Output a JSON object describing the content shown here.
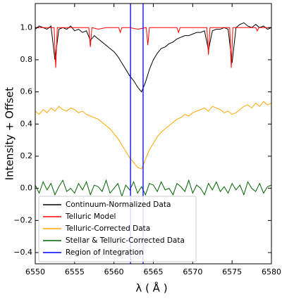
{
  "chart_data": {
    "type": "line",
    "xlabel": "λ ( Å )",
    "ylabel": "Intensity + Offset",
    "xlim": [
      6550,
      6580
    ],
    "ylim": [
      -0.47,
      1.15
    ],
    "xticks": [
      6550,
      6555,
      6560,
      6565,
      6570,
      6575,
      6580
    ],
    "yticks": [
      {
        "value": -0.4,
        "label": "−0.4"
      },
      {
        "value": -0.2,
        "label": "−0.2"
      },
      {
        "value": 0,
        "label": "0.0"
      },
      0.2,
      0.4,
      0.6,
      0.8,
      {
        "value": 1,
        "label": "1.0"
      }
    ],
    "legend": "lower left",
    "x": [
      6550,
      6550.5,
      6551,
      6551.5,
      6552,
      6552.5,
      6553,
      6553.5,
      6554,
      6554.5,
      6555,
      6555.5,
      6556,
      6556.5,
      6557,
      6557.5,
      6558,
      6558.5,
      6559,
      6559.5,
      6560,
      6560.5,
      6561,
      6561.5,
      6562,
      6562.5,
      6563,
      6563.5,
      6564,
      6564.5,
      6565,
      6565.5,
      6566,
      6566.5,
      6567,
      6567.5,
      6568,
      6568.5,
      6569,
      6569.5,
      6570,
      6570.5,
      6571,
      6571.5,
      6572,
      6572.5,
      6573,
      6573.5,
      6574,
      6574.5,
      6575,
      6575.5,
      6576,
      6576.5,
      6577,
      6577.5,
      6578,
      6578.5,
      6579,
      6579.5,
      6580
    ],
    "series": [
      {
        "name": "Continuum-Normalized Data",
        "color": "#000000",
        "values": [
          0.99,
          1.01,
          1.0,
          0.99,
          1.01,
          0.8,
          0.99,
          1.0,
          0.99,
          1.01,
          0.98,
          0.99,
          0.97,
          0.98,
          0.92,
          0.95,
          0.93,
          0.91,
          0.89,
          0.87,
          0.85,
          0.82,
          0.78,
          0.74,
          0.7,
          0.67,
          0.63,
          0.6,
          0.66,
          0.74,
          0.8,
          0.84,
          0.87,
          0.88,
          0.9,
          0.91,
          0.93,
          0.94,
          0.95,
          0.95,
          0.96,
          0.97,
          0.97,
          0.98,
          0.86,
          0.98,
          0.99,
          0.99,
          1.0,
          0.99,
          0.78,
          1.0,
          1.02,
          1.03,
          1.01,
          1.0,
          1.02,
          1.0,
          1.01,
          0.99,
          1.0
        ]
      },
      {
        "name": "Telluric Model",
        "color": "#ff0000",
        "x": [
          6550,
          6552.4,
          6552.6,
          6552.8,
          6556.8,
          6557.0,
          6557.2,
          6558,
          6559,
          6560.6,
          6560.8,
          6561.0,
          6562,
          6563,
          6564.1,
          6564.3,
          6564.5,
          6566,
          6568.0,
          6568.2,
          6568.4,
          6570,
          6571.8,
          6572.0,
          6572.2,
          6573,
          6574.7,
          6574.9,
          6575.1,
          6577,
          6578.0,
          6578.2,
          6578.4,
          6580
        ],
        "values": [
          1.0,
          1.0,
          0.75,
          1.0,
          1.0,
          0.88,
          1.0,
          0.99,
          1.0,
          1.0,
          0.97,
          1.0,
          1.0,
          0.99,
          1.0,
          0.89,
          1.0,
          1.0,
          1.0,
          0.97,
          1.0,
          1.0,
          1.0,
          0.83,
          1.0,
          1.0,
          1.0,
          0.75,
          1.0,
          1.0,
          1.0,
          0.98,
          1.0,
          1.0
        ]
      },
      {
        "name": "Telluric-Corrected Data",
        "color": "#ffa500",
        "values": [
          0.48,
          0.46,
          0.49,
          0.47,
          0.5,
          0.48,
          0.51,
          0.49,
          0.48,
          0.5,
          0.49,
          0.47,
          0.48,
          0.46,
          0.45,
          0.44,
          0.43,
          0.41,
          0.39,
          0.37,
          0.34,
          0.31,
          0.27,
          0.23,
          0.19,
          0.16,
          0.13,
          0.12,
          0.18,
          0.24,
          0.28,
          0.32,
          0.35,
          0.37,
          0.39,
          0.41,
          0.43,
          0.44,
          0.46,
          0.45,
          0.47,
          0.48,
          0.49,
          0.5,
          0.48,
          0.51,
          0.5,
          0.49,
          0.47,
          0.48,
          0.46,
          0.47,
          0.49,
          0.51,
          0.52,
          0.5,
          0.53,
          0.51,
          0.54,
          0.52,
          0.53
        ]
      },
      {
        "name": "Stellar & Telluric-Corrected Data",
        "color": "#006400",
        "values": [
          0.02,
          -0.03,
          0.04,
          -0.01,
          0.03,
          -0.04,
          0.01,
          0.05,
          -0.02,
          0.0,
          -0.03,
          0.03,
          -0.01,
          0.04,
          -0.04,
          0.02,
          0.01,
          -0.02,
          0.05,
          -0.03,
          0.0,
          0.03,
          -0.05,
          0.02,
          -0.01,
          0.04,
          -0.03,
          0.01,
          -0.04,
          0.03,
          0.02,
          -0.02,
          0.04,
          -0.01,
          0.0,
          -0.04,
          0.03,
          0.01,
          -0.02,
          0.05,
          -0.03,
          0.02,
          0.0,
          -0.04,
          0.03,
          -0.01,
          0.04,
          -0.02,
          0.01,
          -0.03,
          0.03,
          -0.01,
          0.02,
          -0.04,
          0.04,
          0.0,
          -0.02,
          0.03,
          -0.03,
          0.01,
          0.02
        ]
      }
    ],
    "vlines": {
      "name": "Region of Integration",
      "color": "#0000ff",
      "x": [
        6562.1,
        6563.7
      ]
    }
  }
}
